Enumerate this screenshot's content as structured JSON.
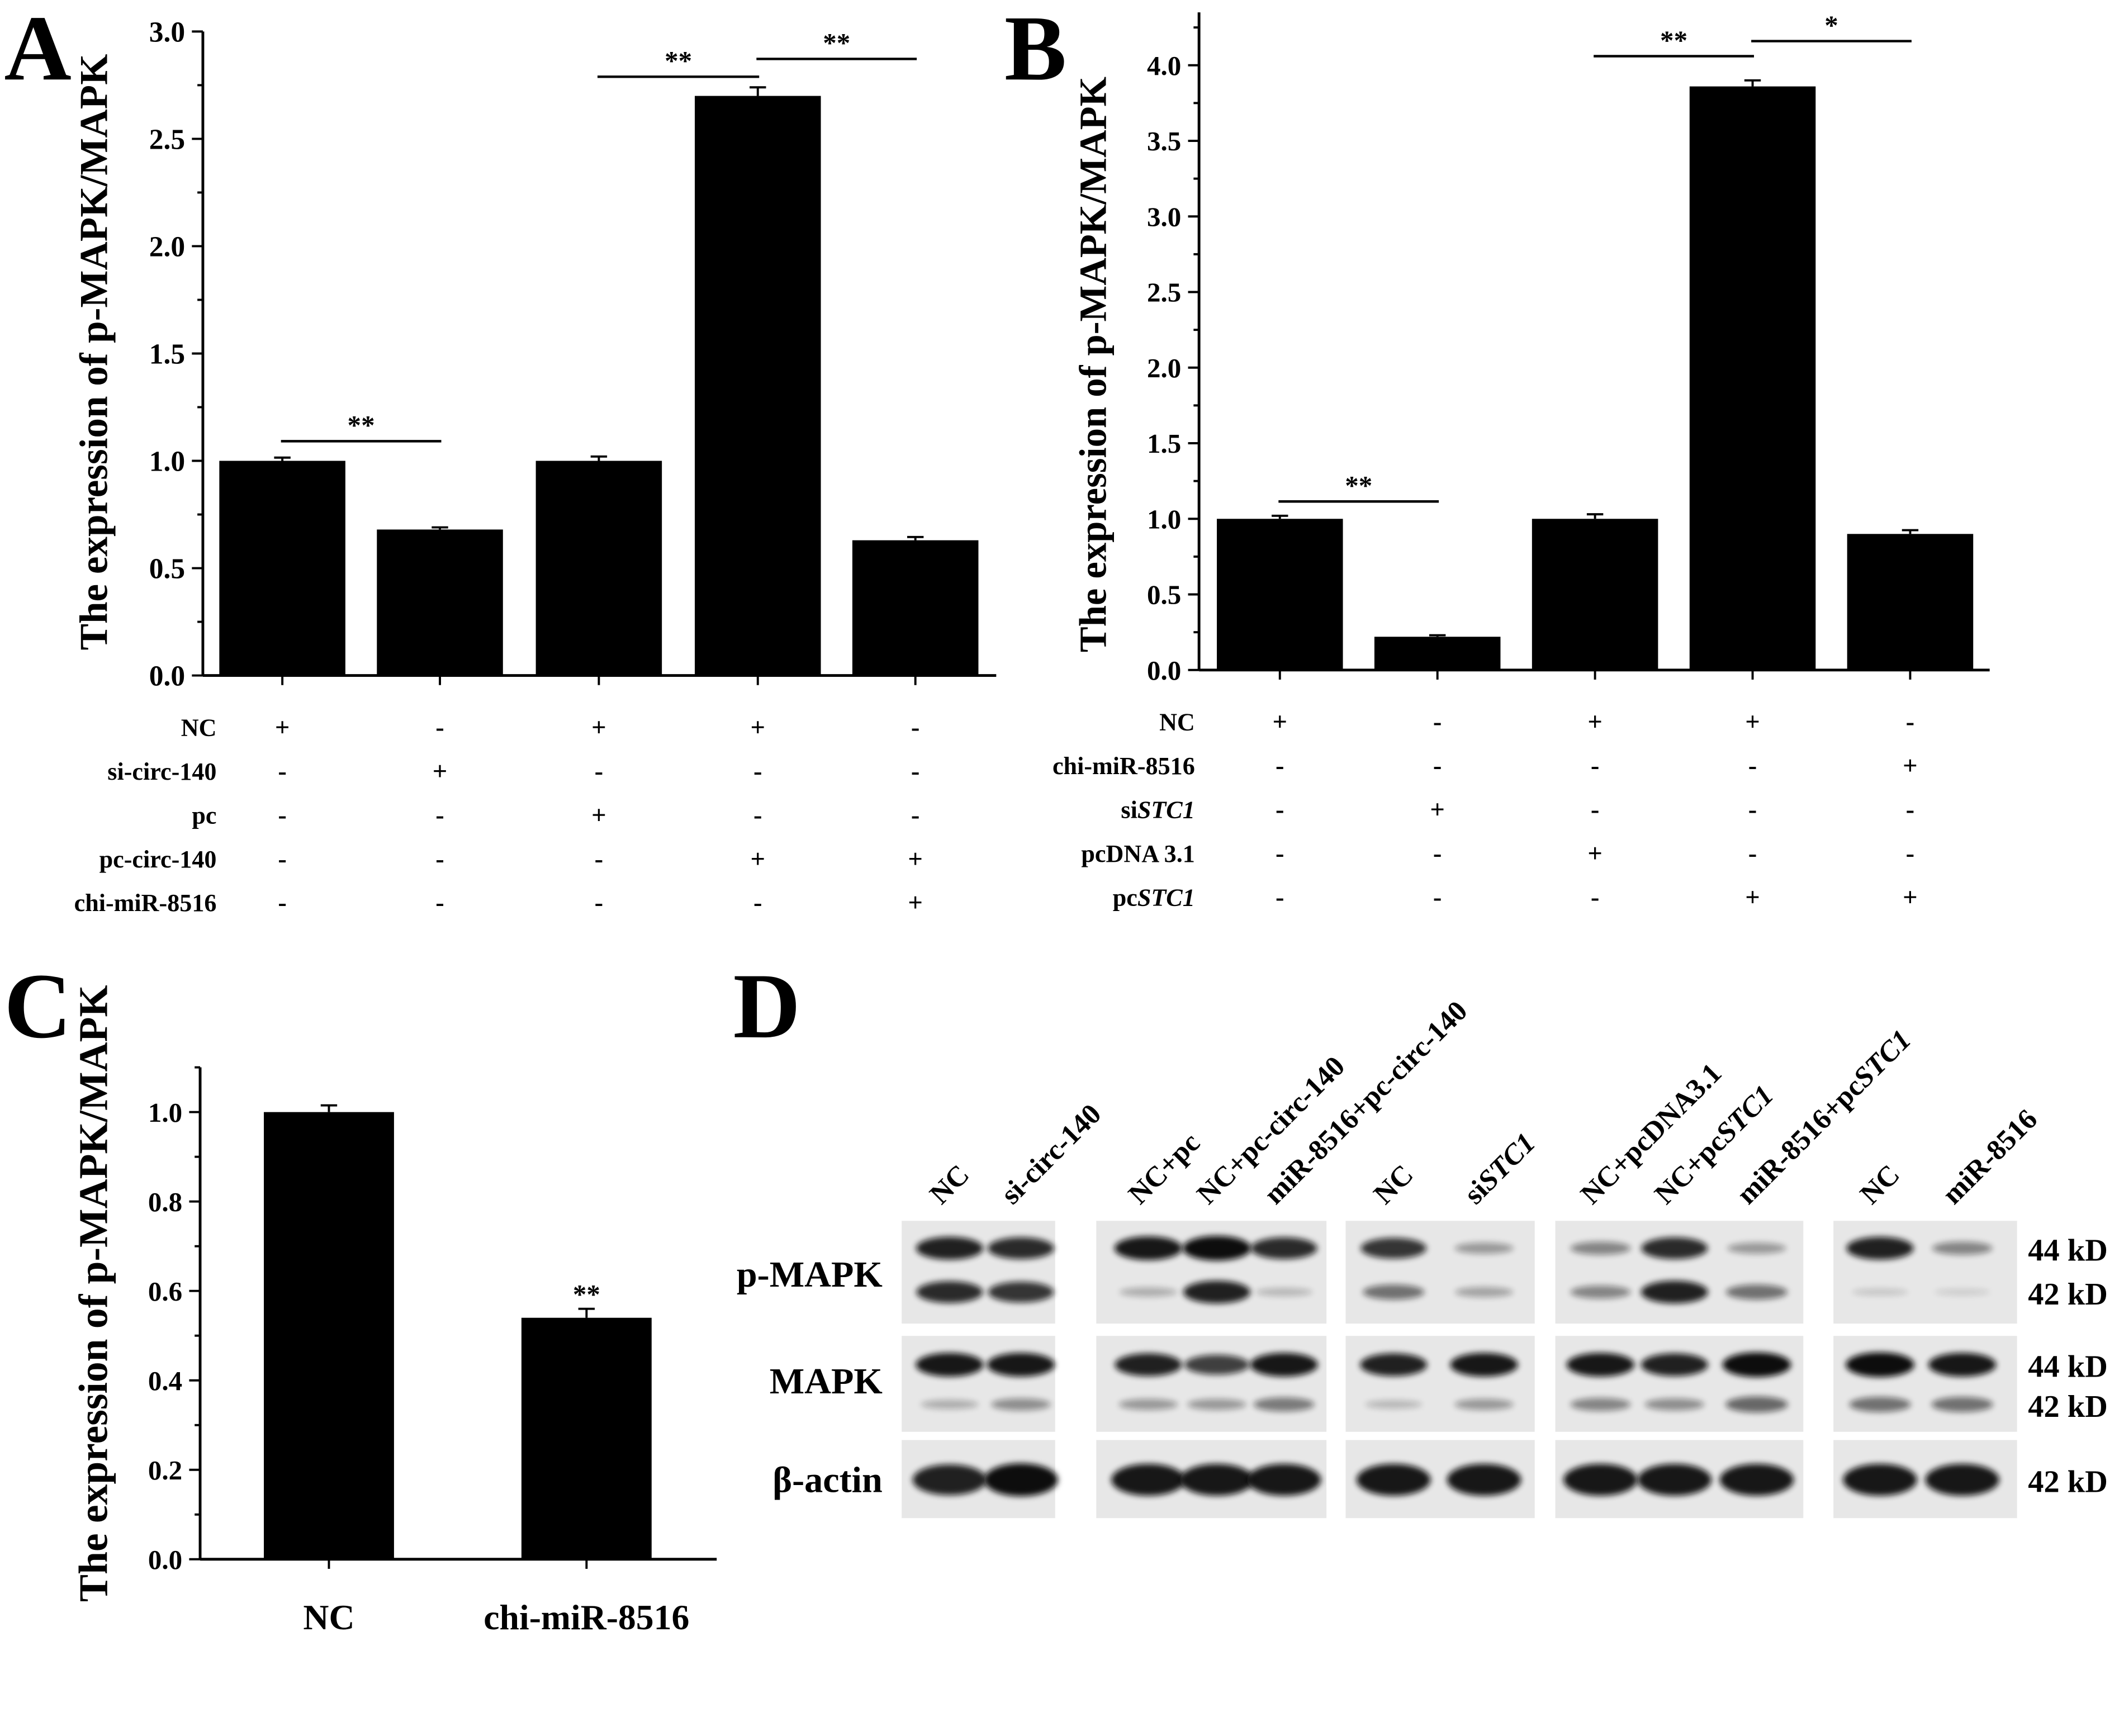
{
  "chart_data": [
    {
      "panel": "A",
      "type": "bar",
      "ylabel": "The expression of p-MAPK/MAPK",
      "ylim": [
        0,
        3.0
      ],
      "yticks": [
        "0.0",
        "0.5",
        "1.0",
        "1.5",
        "2.0",
        "2.5",
        "3.0"
      ],
      "values": [
        1.0,
        0.68,
        1.0,
        2.7,
        0.63
      ],
      "errors": [
        0.015,
        0.01,
        0.02,
        0.04,
        0.015
      ],
      "bar_color": "#000000",
      "significance": [
        {
          "from": 0,
          "to": 1,
          "label": "**"
        },
        {
          "from": 2,
          "to": 3,
          "label": "**"
        },
        {
          "from": 3,
          "to": 4,
          "label": "**"
        }
      ],
      "treatments": [
        {
          "label": "NC",
          "marks": [
            "+",
            "-",
            "+",
            "+",
            "-"
          ]
        },
        {
          "label": "si-circ-140",
          "marks": [
            "-",
            "+",
            "-",
            "-",
            "-"
          ]
        },
        {
          "label": "pc",
          "marks": [
            "-",
            "-",
            "+",
            "-",
            "-"
          ]
        },
        {
          "label": "pc-circ-140",
          "marks": [
            "-",
            "-",
            "-",
            "+",
            "+"
          ]
        },
        {
          "label": "chi-miR-8516",
          "marks": [
            "-",
            "-",
            "-",
            "-",
            "+"
          ]
        }
      ]
    },
    {
      "panel": "B",
      "type": "bar",
      "ylabel": "The expression of p-MAPK/MAPK",
      "ylim": [
        0,
        4.35
      ],
      "yticks": [
        "0.0",
        "0.5",
        "1.0",
        "1.5",
        "2.0",
        "2.5",
        "3.0",
        "3.5",
        "4.0"
      ],
      "values": [
        1.0,
        0.22,
        1.0,
        3.86,
        0.9
      ],
      "errors": [
        0.02,
        0.01,
        0.03,
        0.04,
        0.025
      ],
      "bar_color": "#000000",
      "significance": [
        {
          "from": 0,
          "to": 1,
          "label": "**"
        },
        {
          "from": 2,
          "to": 3,
          "label": "**"
        },
        {
          "from": 3,
          "to": 4,
          "label": "*"
        }
      ],
      "treatments": [
        {
          "label": "NC",
          "marks": [
            "+",
            "-",
            "+",
            "+",
            "-"
          ]
        },
        {
          "label": "chi-miR-8516",
          "marks": [
            "-",
            "-",
            "-",
            "-",
            "+"
          ]
        },
        {
          "label": "si",
          "label_italic": "STC1",
          "marks": [
            "-",
            "+",
            "-",
            "-",
            "-"
          ]
        },
        {
          "label": "pcDNA 3.1",
          "marks": [
            "-",
            "-",
            "+",
            "-",
            "-"
          ]
        },
        {
          "label": "pc",
          "label_italic": "STC1",
          "marks": [
            "-",
            "-",
            "-",
            "+",
            "+"
          ]
        }
      ]
    },
    {
      "panel": "C",
      "type": "bar",
      "ylabel": "The expression of p-MAPK/MAPK",
      "ylim": [
        0,
        1.1
      ],
      "yticks": [
        "0.0",
        "0.2",
        "0.4",
        "0.6",
        "0.8",
        "1.0"
      ],
      "categories": [
        "NC",
        "chi-miR-8516"
      ],
      "values": [
        1.0,
        0.54
      ],
      "errors": [
        0.015,
        0.02
      ],
      "bar_color": "#000000",
      "significance": [
        {
          "bar": 1,
          "label": "**"
        }
      ]
    }
  ],
  "blot": {
    "panel": "D",
    "band_color": "#0d0d0d",
    "rows": [
      {
        "label": "p-MAPK",
        "sizes": [
          "44 kD",
          "42 kD"
        ]
      },
      {
        "label": "MAPK",
        "sizes": [
          "44 kD",
          "42 kD"
        ]
      },
      {
        "label": "β-actin",
        "sizes": [
          "42 kD"
        ]
      }
    ],
    "groups": [
      {
        "lanes": [
          {
            "label": "NC",
            "intensity": [
              [
                0.9,
                0.85
              ],
              [
                0.95,
                0.2
              ],
              [
                0.9
              ]
            ]
          },
          {
            "label": "si-circ-140",
            "intensity": [
              [
                0.85,
                0.8
              ],
              [
                0.95,
                0.35
              ],
              [
                1.0
              ]
            ]
          }
        ]
      },
      {
        "lanes": [
          {
            "label": "NC+pc",
            "intensity": [
              [
                0.95,
                0.2
              ],
              [
                0.9,
                0.3
              ],
              [
                0.95
              ]
            ]
          },
          {
            "label": "NC+pc-circ-140",
            "intensity": [
              [
                1.0,
                0.9
              ],
              [
                0.75,
                0.3
              ],
              [
                0.95
              ]
            ]
          },
          {
            "label": "miR-8516+pc-circ-140",
            "intensity": [
              [
                0.85,
                0.15
              ],
              [
                0.95,
                0.45
              ],
              [
                0.95
              ]
            ]
          }
        ]
      },
      {
        "lanes": [
          {
            "label": "NC",
            "intensity": [
              [
                0.8,
                0.5
              ],
              [
                0.9,
                0.15
              ],
              [
                0.95
              ]
            ]
          },
          {
            "label": "si",
            "label_italic": "STC1",
            "intensity": [
              [
                0.3,
                0.25
              ],
              [
                0.95,
                0.3
              ],
              [
                0.95
              ]
            ]
          }
        ]
      },
      {
        "lanes": [
          {
            "label": "NC+pcDNA3.1",
            "intensity": [
              [
                0.4,
                0.4
              ],
              [
                0.95,
                0.4
              ],
              [
                0.95
              ]
            ]
          },
          {
            "label": "NC+pc",
            "label_italic": "STC1",
            "intensity": [
              [
                0.85,
                0.9
              ],
              [
                0.9,
                0.35
              ],
              [
                0.95
              ]
            ]
          },
          {
            "label": "miR-8516+pc",
            "label_italic": "STC1",
            "intensity": [
              [
                0.3,
                0.5
              ],
              [
                1.0,
                0.55
              ],
              [
                0.95
              ]
            ]
          }
        ]
      },
      {
        "lanes": [
          {
            "label": "NC",
            "intensity": [
              [
                0.9,
                0.08
              ],
              [
                1.0,
                0.5
              ],
              [
                0.95
              ]
            ]
          },
          {
            "label": "miR-8516",
            "intensity": [
              [
                0.4,
                0.05
              ],
              [
                0.95,
                0.5
              ],
              [
                0.95
              ]
            ]
          }
        ]
      }
    ]
  }
}
